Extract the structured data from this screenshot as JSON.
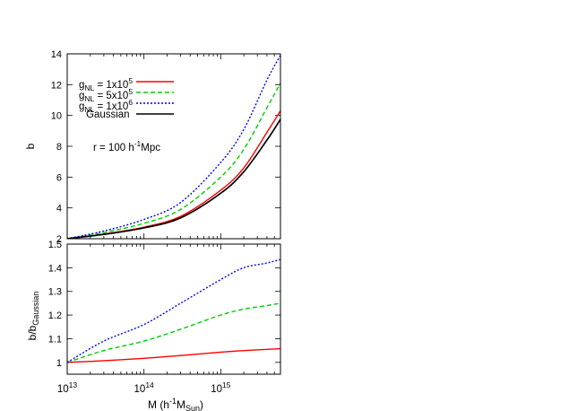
{
  "chart_data": [
    {
      "type": "line",
      "panel": "top",
      "xscale": "log",
      "xlim": [
        10000000000000.0,
        6000000000000000.0
      ],
      "ylim": [
        2,
        14
      ],
      "yticks": [
        2,
        4,
        6,
        8,
        10,
        12,
        14
      ],
      "ytick_labels": [
        "2",
        "4",
        "6",
        "8",
        "10",
        "12",
        "14"
      ],
      "ylabel": "b",
      "annotation": {
        "text": "r = 100 h",
        "sup": "-1",
        "after": "Mpc"
      },
      "legend_position": "top-left",
      "series": [
        {
          "name": "gNL = 1x10^5",
          "legend": {
            "g": "g",
            "sub": "NL",
            "mid": " = 1x10",
            "sup": "5"
          },
          "color": "#ff0000",
          "style": "solid",
          "x": [
            10000000000000.0,
            30000000000000.0,
            100000000000000.0,
            300000000000000.0,
            1000000000000000.0,
            2000000000000000.0,
            4000000000000000.0,
            6000000000000000.0
          ],
          "y": [
            2.0,
            2.3,
            2.75,
            3.45,
            5.15,
            6.6,
            8.9,
            10.3
          ]
        },
        {
          "name": "gNL = 5x10^5",
          "legend": {
            "g": "g",
            "sub": "NL",
            "mid": " = 5x10",
            "sup": "5"
          },
          "color": "#00cc00",
          "style": "dashed",
          "x": [
            10000000000000.0,
            30000000000000.0,
            100000000000000.0,
            300000000000000.0,
            1000000000000000.0,
            2000000000000000.0,
            4000000000000000.0,
            6000000000000000.0
          ],
          "y": [
            2.0,
            2.4,
            3.0,
            3.9,
            6.0,
            7.8,
            10.5,
            12.1
          ]
        },
        {
          "name": "gNL = 1x10^6",
          "legend": {
            "g": "g",
            "sub": "NL",
            "mid": " = 1x10",
            "sup": "6"
          },
          "color": "#0000ff",
          "style": "dotted",
          "x": [
            10000000000000.0,
            30000000000000.0,
            100000000000000.0,
            300000000000000.0,
            1000000000000000.0,
            2000000000000000.0,
            4000000000000000.0,
            6000000000000000.0
          ],
          "y": [
            2.0,
            2.5,
            3.25,
            4.35,
            6.95,
            9.1,
            12.3,
            13.9
          ]
        },
        {
          "name": "Gaussian",
          "legend": {
            "g": "Gaussian",
            "sub": "",
            "mid": "",
            "sup": ""
          },
          "color": "#000000",
          "style": "solid",
          "x": [
            10000000000000.0,
            30000000000000.0,
            100000000000000.0,
            300000000000000.0,
            1000000000000000.0,
            2000000000000000.0,
            4000000000000000.0,
            6000000000000000.0
          ],
          "y": [
            2.0,
            2.28,
            2.7,
            3.35,
            4.95,
            6.35,
            8.4,
            9.75
          ]
        }
      ]
    },
    {
      "type": "line",
      "panel": "bottom",
      "xscale": "log",
      "xlim": [
        10000000000000.0,
        6000000000000000.0
      ],
      "ylim": [
        0.95,
        1.5
      ],
      "yticks": [
        1.0,
        1.1,
        1.2,
        1.3,
        1.4,
        1.5
      ],
      "ytick_labels": [
        "1",
        "1.1",
        "1.2",
        "1.3",
        "1.4",
        "1.5"
      ],
      "xticks": [
        10000000000000.0,
        100000000000000.0,
        1000000000000000.0
      ],
      "xtick_labels": [
        {
          "base": "10",
          "exp": "13"
        },
        {
          "base": "10",
          "exp": "14"
        },
        {
          "base": "10",
          "exp": "15"
        }
      ],
      "ylabel": {
        "main": "b/b",
        "sub": "Gaussian"
      },
      "xlabel": {
        "pre": "M (h",
        "sup": "-1",
        "mid": "M",
        "sub": "Sun",
        "post": ")"
      },
      "series": [
        {
          "name": "gNL = 1x10^5",
          "color": "#ff0000",
          "style": "solid",
          "x": [
            10000000000000.0,
            30000000000000.0,
            100000000000000.0,
            300000000000000.0,
            1000000000000000.0,
            2000000000000000.0,
            6000000000000000.0
          ],
          "y": [
            1.0,
            1.007,
            1.017,
            1.029,
            1.043,
            1.05,
            1.058
          ]
        },
        {
          "name": "gNL = 5x10^5",
          "color": "#00cc00",
          "style": "dashed",
          "x": [
            10000000000000.0,
            30000000000000.0,
            100000000000000.0,
            300000000000000.0,
            1000000000000000.0,
            2000000000000000.0,
            4000000000000000.0,
            6000000000000000.0
          ],
          "y": [
            1.0,
            1.05,
            1.09,
            1.14,
            1.2,
            1.225,
            1.24,
            1.25
          ]
        },
        {
          "name": "gNL = 1x10^6",
          "color": "#0000ff",
          "style": "dotted",
          "x": [
            10000000000000.0,
            30000000000000.0,
            100000000000000.0,
            300000000000000.0,
            1000000000000000.0,
            2000000000000000.0,
            4000000000000000.0,
            6000000000000000.0
          ],
          "y": [
            1.0,
            1.09,
            1.16,
            1.25,
            1.35,
            1.4,
            1.42,
            1.435
          ]
        }
      ]
    }
  ]
}
